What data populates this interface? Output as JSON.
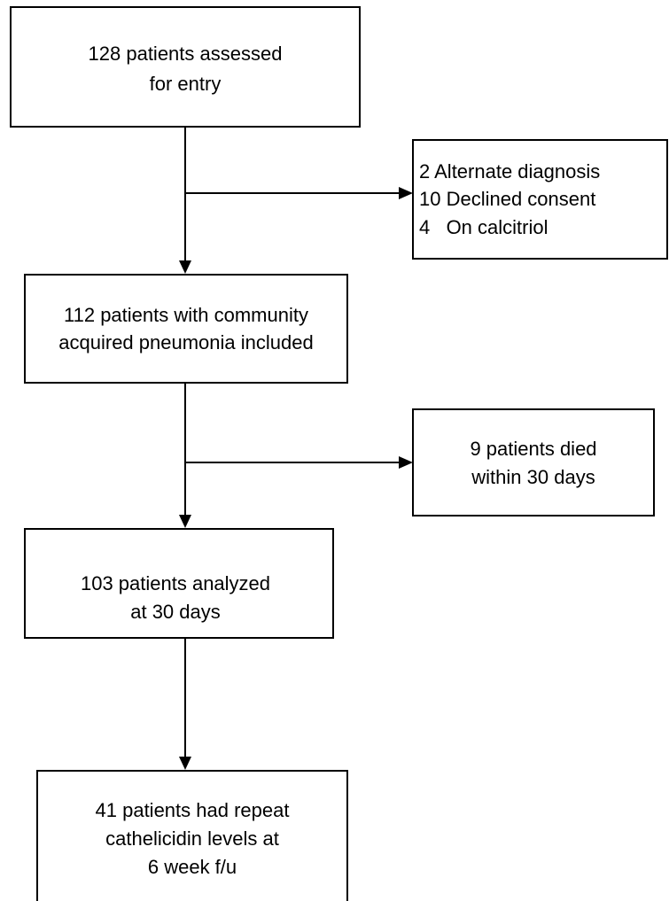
{
  "nodes": [
    {
      "lines": [
        "128 patients assessed",
        "for entry"
      ]
    },
    {
      "lines": [
        "2 Alternate diagnosis",
        "10 Declined consent",
        "4   On calcitriol"
      ]
    },
    {
      "lines": [
        "112 patients with community",
        "acquired pneumonia included"
      ]
    },
    {
      "lines": [
        "9 patients died",
        "within 30 days"
      ]
    },
    {
      "lines": [
        "103 patients analyzed",
        "at 30 days"
      ]
    },
    {
      "lines": [
        "41 patients had repeat",
        "cathelicidin levels at",
        "6 week f/u"
      ]
    }
  ]
}
